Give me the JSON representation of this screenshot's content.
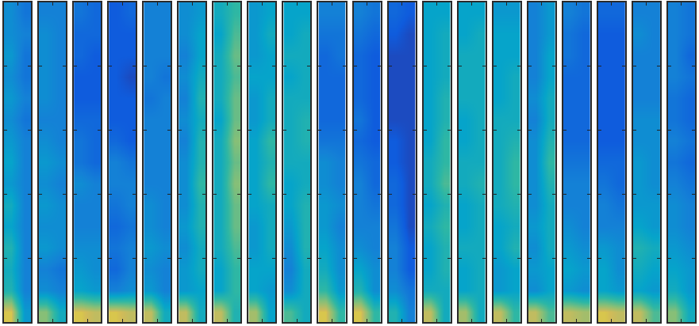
{
  "chart_data": {
    "type": "heatmap",
    "tick_labels": false,
    "grid": false,
    "xlim": [
      0,
      2
    ],
    "xticks": [
      0,
      1,
      2
    ],
    "ylim": [
      0,
      15
    ],
    "yticks": [
      0,
      3,
      6,
      9,
      12,
      15
    ],
    "zlim": [
      0,
      1
    ],
    "panels": [
      {
        "cells": [
          [
            0.9,
            0.4
          ],
          [
            0.55,
            0.3
          ],
          [
            0.5,
            0.3
          ],
          [
            0.55,
            0.3
          ],
          [
            0.45,
            0.3
          ],
          [
            0.5,
            0.3
          ],
          [
            0.4,
            0.3
          ],
          [
            0.45,
            0.3
          ],
          [
            0.4,
            0.3
          ],
          [
            0.35,
            0.25
          ],
          [
            0.4,
            0.3
          ],
          [
            0.35,
            0.25
          ],
          [
            0.4,
            0.25
          ],
          [
            0.35,
            0.3
          ],
          [
            0.35,
            0.25
          ]
        ]
      },
      {
        "cells": [
          [
            0.75,
            0.5
          ],
          [
            0.35,
            0.3
          ],
          [
            0.3,
            0.25
          ],
          [
            0.4,
            0.35
          ],
          [
            0.35,
            0.35
          ],
          [
            0.4,
            0.35
          ],
          [
            0.35,
            0.3
          ],
          [
            0.4,
            0.35
          ],
          [
            0.35,
            0.3
          ],
          [
            0.3,
            0.3
          ],
          [
            0.35,
            0.3
          ],
          [
            0.35,
            0.3
          ],
          [
            0.35,
            0.3
          ],
          [
            0.35,
            0.3
          ],
          [
            0.3,
            0.3
          ]
        ]
      },
      {
        "cells": [
          [
            0.9,
            0.85
          ],
          [
            0.45,
            0.4
          ],
          [
            0.4,
            0.35
          ],
          [
            0.35,
            0.35
          ],
          [
            0.3,
            0.3
          ],
          [
            0.3,
            0.3
          ],
          [
            0.35,
            0.3
          ],
          [
            0.25,
            0.2
          ],
          [
            0.25,
            0.2
          ],
          [
            0.2,
            0.2
          ],
          [
            0.15,
            0.15
          ],
          [
            0.15,
            0.15
          ],
          [
            0.2,
            0.15
          ],
          [
            0.2,
            0.2
          ],
          [
            0.25,
            0.2
          ]
        ]
      },
      {
        "cells": [
          [
            0.9,
            0.85
          ],
          [
            0.3,
            0.35
          ],
          [
            0.2,
            0.3
          ],
          [
            0.25,
            0.3
          ],
          [
            0.2,
            0.25
          ],
          [
            0.25,
            0.3
          ],
          [
            0.3,
            0.3
          ],
          [
            0.3,
            0.25
          ],
          [
            0.2,
            0.15
          ],
          [
            0.15,
            0.15
          ],
          [
            0.15,
            0.15
          ],
          [
            0.15,
            0.1
          ],
          [
            0.15,
            0.15
          ],
          [
            0.15,
            0.15
          ],
          [
            0.15,
            0.2
          ]
        ]
      },
      {
        "cells": [
          [
            0.85,
            0.5
          ],
          [
            0.4,
            0.3
          ],
          [
            0.35,
            0.3
          ],
          [
            0.4,
            0.35
          ],
          [
            0.35,
            0.3
          ],
          [
            0.35,
            0.3
          ],
          [
            0.3,
            0.3
          ],
          [
            0.3,
            0.3
          ],
          [
            0.3,
            0.3
          ],
          [
            0.3,
            0.3
          ],
          [
            0.25,
            0.3
          ],
          [
            0.3,
            0.25
          ],
          [
            0.3,
            0.3
          ],
          [
            0.3,
            0.3
          ],
          [
            0.3,
            0.3
          ]
        ]
      },
      {
        "cells": [
          [
            0.85,
            0.5
          ],
          [
            0.4,
            0.45
          ],
          [
            0.4,
            0.5
          ],
          [
            0.35,
            0.5
          ],
          [
            0.4,
            0.55
          ],
          [
            0.35,
            0.55
          ],
          [
            0.35,
            0.6
          ],
          [
            0.35,
            0.55
          ],
          [
            0.3,
            0.55
          ],
          [
            0.35,
            0.5
          ],
          [
            0.3,
            0.55
          ],
          [
            0.35,
            0.5
          ],
          [
            0.3,
            0.45
          ],
          [
            0.35,
            0.45
          ],
          [
            0.35,
            0.4
          ]
        ]
      },
      {
        "cells": [
          [
            0.85,
            0.55
          ],
          [
            0.45,
            0.6
          ],
          [
            0.45,
            0.6
          ],
          [
            0.5,
            0.65
          ],
          [
            0.5,
            0.7
          ],
          [
            0.5,
            0.7
          ],
          [
            0.5,
            0.75
          ],
          [
            0.5,
            0.7
          ],
          [
            0.5,
            0.75
          ],
          [
            0.45,
            0.7
          ],
          [
            0.5,
            0.7
          ],
          [
            0.5,
            0.65
          ],
          [
            0.5,
            0.7
          ],
          [
            0.45,
            0.65
          ],
          [
            0.5,
            0.6
          ]
        ]
      },
      {
        "cells": [
          [
            0.8,
            0.45
          ],
          [
            0.45,
            0.4
          ],
          [
            0.45,
            0.45
          ],
          [
            0.4,
            0.5
          ],
          [
            0.4,
            0.5
          ],
          [
            0.45,
            0.5
          ],
          [
            0.45,
            0.6
          ],
          [
            0.45,
            0.55
          ],
          [
            0.45,
            0.6
          ],
          [
            0.4,
            0.5
          ],
          [
            0.4,
            0.5
          ],
          [
            0.45,
            0.45
          ],
          [
            0.4,
            0.45
          ],
          [
            0.4,
            0.5
          ],
          [
            0.4,
            0.45
          ]
        ]
      },
      {
        "cells": [
          [
            0.65,
            0.5
          ],
          [
            0.35,
            0.5
          ],
          [
            0.3,
            0.5
          ],
          [
            0.35,
            0.55
          ],
          [
            0.4,
            0.55
          ],
          [
            0.45,
            0.55
          ],
          [
            0.45,
            0.5
          ],
          [
            0.5,
            0.5
          ],
          [
            0.5,
            0.55
          ],
          [
            0.5,
            0.55
          ],
          [
            0.5,
            0.5
          ],
          [
            0.45,
            0.5
          ],
          [
            0.5,
            0.5
          ],
          [
            0.45,
            0.5
          ],
          [
            0.45,
            0.45
          ]
        ]
      },
      {
        "cells": [
          [
            0.9,
            0.6
          ],
          [
            0.6,
            0.4
          ],
          [
            0.5,
            0.35
          ],
          [
            0.45,
            0.35
          ],
          [
            0.4,
            0.3
          ],
          [
            0.4,
            0.35
          ],
          [
            0.35,
            0.3
          ],
          [
            0.35,
            0.3
          ],
          [
            0.25,
            0.25
          ],
          [
            0.2,
            0.2
          ],
          [
            0.2,
            0.2
          ],
          [
            0.2,
            0.2
          ],
          [
            0.2,
            0.25
          ],
          [
            0.25,
            0.25
          ],
          [
            0.3,
            0.3
          ]
        ]
      },
      {
        "cells": [
          [
            0.9,
            0.6
          ],
          [
            0.55,
            0.35
          ],
          [
            0.45,
            0.35
          ],
          [
            0.35,
            0.3
          ],
          [
            0.3,
            0.3
          ],
          [
            0.3,
            0.25
          ],
          [
            0.3,
            0.2
          ],
          [
            0.25,
            0.2
          ],
          [
            0.2,
            0.15
          ],
          [
            0.25,
            0.15
          ],
          [
            0.2,
            0.15
          ],
          [
            0.2,
            0.15
          ],
          [
            0.2,
            0.15
          ],
          [
            0.25,
            0.2
          ],
          [
            0.3,
            0.25
          ]
        ]
      },
      {
        "cells": [
          [
            0.55,
            0.3
          ],
          [
            0.35,
            0.25
          ],
          [
            0.3,
            0.15
          ],
          [
            0.3,
            0.15
          ],
          [
            0.25,
            0.1
          ],
          [
            0.2,
            0.1
          ],
          [
            0.2,
            0.1
          ],
          [
            0.15,
            0.1
          ],
          [
            0.15,
            0.1
          ],
          [
            0.1,
            0.1
          ],
          [
            0.1,
            0.1
          ],
          [
            0.1,
            0.1
          ],
          [
            0.1,
            0.1
          ],
          [
            0.15,
            0.1
          ],
          [
            0.2,
            0.15
          ]
        ]
      },
      {
        "cells": [
          [
            0.85,
            0.5
          ],
          [
            0.5,
            0.5
          ],
          [
            0.45,
            0.55
          ],
          [
            0.45,
            0.55
          ],
          [
            0.5,
            0.6
          ],
          [
            0.45,
            0.55
          ],
          [
            0.5,
            0.65
          ],
          [
            0.5,
            0.6
          ],
          [
            0.45,
            0.6
          ],
          [
            0.45,
            0.55
          ],
          [
            0.45,
            0.55
          ],
          [
            0.45,
            0.5
          ],
          [
            0.45,
            0.5
          ],
          [
            0.45,
            0.5
          ],
          [
            0.45,
            0.45
          ]
        ]
      },
      {
        "cells": [
          [
            0.8,
            0.5
          ],
          [
            0.45,
            0.5
          ],
          [
            0.45,
            0.5
          ],
          [
            0.5,
            0.5
          ],
          [
            0.45,
            0.5
          ],
          [
            0.45,
            0.5
          ],
          [
            0.5,
            0.55
          ],
          [
            0.5,
            0.5
          ],
          [
            0.45,
            0.5
          ],
          [
            0.45,
            0.5
          ],
          [
            0.5,
            0.5
          ],
          [
            0.5,
            0.5
          ],
          [
            0.5,
            0.5
          ],
          [
            0.45,
            0.5
          ],
          [
            0.45,
            0.45
          ]
        ]
      },
      {
        "cells": [
          [
            0.85,
            0.6
          ],
          [
            0.4,
            0.45
          ],
          [
            0.4,
            0.45
          ],
          [
            0.45,
            0.55
          ],
          [
            0.45,
            0.5
          ],
          [
            0.5,
            0.55
          ],
          [
            0.5,
            0.6
          ],
          [
            0.5,
            0.6
          ],
          [
            0.5,
            0.55
          ],
          [
            0.5,
            0.5
          ],
          [
            0.45,
            0.5
          ],
          [
            0.45,
            0.5
          ],
          [
            0.45,
            0.45
          ],
          [
            0.45,
            0.45
          ],
          [
            0.4,
            0.4
          ]
        ]
      },
      {
        "cells": [
          [
            0.85,
            0.65
          ],
          [
            0.35,
            0.45
          ],
          [
            0.4,
            0.45
          ],
          [
            0.35,
            0.5
          ],
          [
            0.4,
            0.5
          ],
          [
            0.35,
            0.5
          ],
          [
            0.35,
            0.55
          ],
          [
            0.35,
            0.6
          ],
          [
            0.35,
            0.55
          ],
          [
            0.3,
            0.5
          ],
          [
            0.35,
            0.5
          ],
          [
            0.3,
            0.45
          ],
          [
            0.3,
            0.45
          ],
          [
            0.3,
            0.4
          ],
          [
            0.3,
            0.4
          ]
        ]
      },
      {
        "cells": [
          [
            0.85,
            0.8
          ],
          [
            0.4,
            0.35
          ],
          [
            0.45,
            0.4
          ],
          [
            0.4,
            0.35
          ],
          [
            0.35,
            0.3
          ],
          [
            0.3,
            0.3
          ],
          [
            0.3,
            0.3
          ],
          [
            0.25,
            0.25
          ],
          [
            0.2,
            0.2
          ],
          [
            0.2,
            0.2
          ],
          [
            0.2,
            0.2
          ],
          [
            0.2,
            0.2
          ],
          [
            0.25,
            0.2
          ],
          [
            0.25,
            0.2
          ],
          [
            0.3,
            0.25
          ]
        ]
      },
      {
        "cells": [
          [
            0.9,
            0.85
          ],
          [
            0.45,
            0.4
          ],
          [
            0.45,
            0.35
          ],
          [
            0.4,
            0.35
          ],
          [
            0.3,
            0.3
          ],
          [
            0.3,
            0.25
          ],
          [
            0.25,
            0.2
          ],
          [
            0.2,
            0.2
          ],
          [
            0.15,
            0.15
          ],
          [
            0.15,
            0.15
          ],
          [
            0.15,
            0.15
          ],
          [
            0.15,
            0.15
          ],
          [
            0.15,
            0.15
          ],
          [
            0.15,
            0.15
          ],
          [
            0.2,
            0.2
          ]
        ]
      },
      {
        "cells": [
          [
            0.85,
            0.65
          ],
          [
            0.45,
            0.4
          ],
          [
            0.5,
            0.45
          ],
          [
            0.55,
            0.5
          ],
          [
            0.45,
            0.4
          ],
          [
            0.4,
            0.4
          ],
          [
            0.4,
            0.35
          ],
          [
            0.4,
            0.35
          ],
          [
            0.35,
            0.35
          ],
          [
            0.35,
            0.35
          ],
          [
            0.3,
            0.3
          ],
          [
            0.3,
            0.3
          ],
          [
            0.3,
            0.3
          ],
          [
            0.35,
            0.3
          ],
          [
            0.3,
            0.3
          ]
        ]
      },
      {
        "cells": [
          [
            0.75,
            0.5
          ],
          [
            0.5,
            0.4
          ],
          [
            0.45,
            0.4
          ],
          [
            0.4,
            0.35
          ],
          [
            0.35,
            0.3
          ],
          [
            0.35,
            0.3
          ],
          [
            0.3,
            0.25
          ],
          [
            0.25,
            0.2
          ],
          [
            0.3,
            0.25
          ],
          [
            0.25,
            0.2
          ],
          [
            0.25,
            0.2
          ],
          [
            0.3,
            0.25
          ],
          [
            0.3,
            0.2
          ],
          [
            0.3,
            0.25
          ],
          [
            0.3,
            0.25
          ]
        ]
      }
    ]
  }
}
